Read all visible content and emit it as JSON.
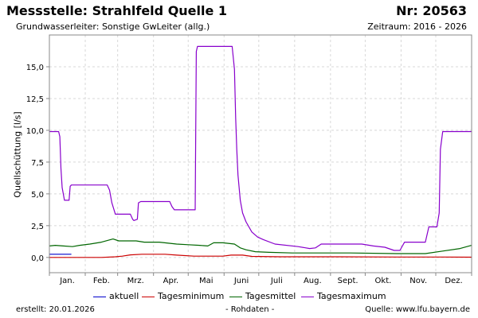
{
  "header": {
    "title": "Messstelle: Strahlfeld Quelle 1",
    "number": "Nr: 20563",
    "subtitle": "Grundwasserleiter: Sonstige GwLeiter (allg.)",
    "period": "Zeitraum: 2016 - 2026"
  },
  "footer": {
    "created": "erstellt:  20.01.2026",
    "raw": "- Rohdaten -",
    "source": "Quelle: www.lfu.bayern.de"
  },
  "colors": {
    "aktuell": "#0000cc",
    "min": "#cc0000",
    "mittel": "#006600",
    "max": "#8800cc",
    "grid": "#d8d8d8"
  },
  "chart_data": {
    "type": "line",
    "ylabel": "Quellschüttung [l/s]",
    "ylim": [
      -1.2,
      17.5
    ],
    "y_ticks": [
      "0,0",
      "2,5",
      "5,0",
      "7,5",
      "10,0",
      "12,5",
      "15,0"
    ],
    "y_tick_values": [
      0,
      2.5,
      5,
      7.5,
      10,
      12.5,
      15
    ],
    "xlim": [
      0,
      365
    ],
    "x_tick_labels": [
      "Jan.",
      "Feb.",
      "Mrz.",
      "Apr.",
      "Mai",
      "Juni",
      "Juli",
      "Aug.",
      "Sept.",
      "Okt.",
      "Nov.",
      "Dez."
    ],
    "x_label_positions": [
      15.5,
      45,
      74.5,
      105,
      135.5,
      166,
      196.5,
      227.5,
      258,
      288.5,
      319,
      349.5
    ],
    "month_starts": [
      0,
      31,
      59,
      90,
      120,
      151,
      181,
      212,
      243,
      273,
      304,
      334,
      365
    ],
    "grid": true,
    "legend": "bottom",
    "series": [
      {
        "name": "aktuell",
        "color_key": "aktuell",
        "points": [
          [
            0,
            0.25
          ],
          [
            19,
            0.25
          ]
        ]
      },
      {
        "name": "Tagesminimum",
        "color_key": "min",
        "points": [
          [
            0,
            0.0
          ],
          [
            30,
            0.0
          ],
          [
            45,
            0.0
          ],
          [
            57,
            0.05
          ],
          [
            63,
            0.1
          ],
          [
            70,
            0.2
          ],
          [
            80,
            0.25
          ],
          [
            100,
            0.25
          ],
          [
            110,
            0.18
          ],
          [
            125,
            0.1
          ],
          [
            150,
            0.1
          ],
          [
            157,
            0.18
          ],
          [
            167,
            0.18
          ],
          [
            175,
            0.08
          ],
          [
            200,
            0.05
          ],
          [
            250,
            0.05
          ],
          [
            300,
            0.03
          ],
          [
            340,
            0.03
          ],
          [
            365,
            0.02
          ]
        ]
      },
      {
        "name": "Tagesmittel",
        "color_key": "mittel",
        "points": [
          [
            0,
            0.9
          ],
          [
            5,
            0.95
          ],
          [
            12,
            0.9
          ],
          [
            20,
            0.85
          ],
          [
            26,
            0.95
          ],
          [
            35,
            1.05
          ],
          [
            45,
            1.2
          ],
          [
            55,
            1.45
          ],
          [
            60,
            1.3
          ],
          [
            75,
            1.3
          ],
          [
            82,
            1.2
          ],
          [
            95,
            1.2
          ],
          [
            110,
            1.05
          ],
          [
            120,
            1.0
          ],
          [
            130,
            0.95
          ],
          [
            137,
            0.9
          ],
          [
            142,
            1.15
          ],
          [
            150,
            1.15
          ],
          [
            160,
            1.05
          ],
          [
            165,
            0.75
          ],
          [
            170,
            0.6
          ],
          [
            178,
            0.45
          ],
          [
            190,
            0.4
          ],
          [
            210,
            0.35
          ],
          [
            260,
            0.35
          ],
          [
            300,
            0.3
          ],
          [
            325,
            0.3
          ],
          [
            340,
            0.5
          ],
          [
            355,
            0.7
          ],
          [
            365,
            0.95
          ]
        ]
      },
      {
        "name": "Tagesmaximum",
        "color_key": "max",
        "points": [
          [
            0,
            9.9
          ],
          [
            8,
            9.9
          ],
          [
            9,
            9.5
          ],
          [
            10,
            7.0
          ],
          [
            11,
            5.5
          ],
          [
            13,
            4.5
          ],
          [
            17,
            4.5
          ],
          [
            18,
            5.6
          ],
          [
            19,
            5.7
          ],
          [
            50,
            5.7
          ],
          [
            52,
            5.3
          ],
          [
            54,
            4.3
          ],
          [
            57,
            3.4
          ],
          [
            70,
            3.4
          ],
          [
            72,
            3.0
          ],
          [
            73,
            2.9
          ],
          [
            76,
            3.0
          ],
          [
            77,
            4.3
          ],
          [
            79,
            4.4
          ],
          [
            104,
            4.4
          ],
          [
            106,
            4.0
          ],
          [
            108,
            3.75
          ],
          [
            126,
            3.75
          ],
          [
            127,
            16.2
          ],
          [
            128,
            16.6
          ],
          [
            158,
            16.6
          ],
          [
            160,
            14.8
          ],
          [
            161,
            11.0
          ],
          [
            162,
            8.5
          ],
          [
            163,
            6.5
          ],
          [
            165,
            4.5
          ],
          [
            167,
            3.5
          ],
          [
            170,
            2.8
          ],
          [
            175,
            2.0
          ],
          [
            180,
            1.6
          ],
          [
            185,
            1.4
          ],
          [
            195,
            1.05
          ],
          [
            215,
            0.85
          ],
          [
            225,
            0.7
          ],
          [
            230,
            0.75
          ],
          [
            235,
            1.05
          ],
          [
            270,
            1.05
          ],
          [
            280,
            0.9
          ],
          [
            290,
            0.8
          ],
          [
            298,
            0.55
          ],
          [
            303,
            0.55
          ],
          [
            307,
            1.2
          ],
          [
            325,
            1.2
          ],
          [
            328,
            2.4
          ],
          [
            335,
            2.4
          ],
          [
            337,
            3.5
          ],
          [
            338,
            8.5
          ],
          [
            340,
            9.9
          ],
          [
            365,
            9.9
          ]
        ]
      }
    ]
  }
}
